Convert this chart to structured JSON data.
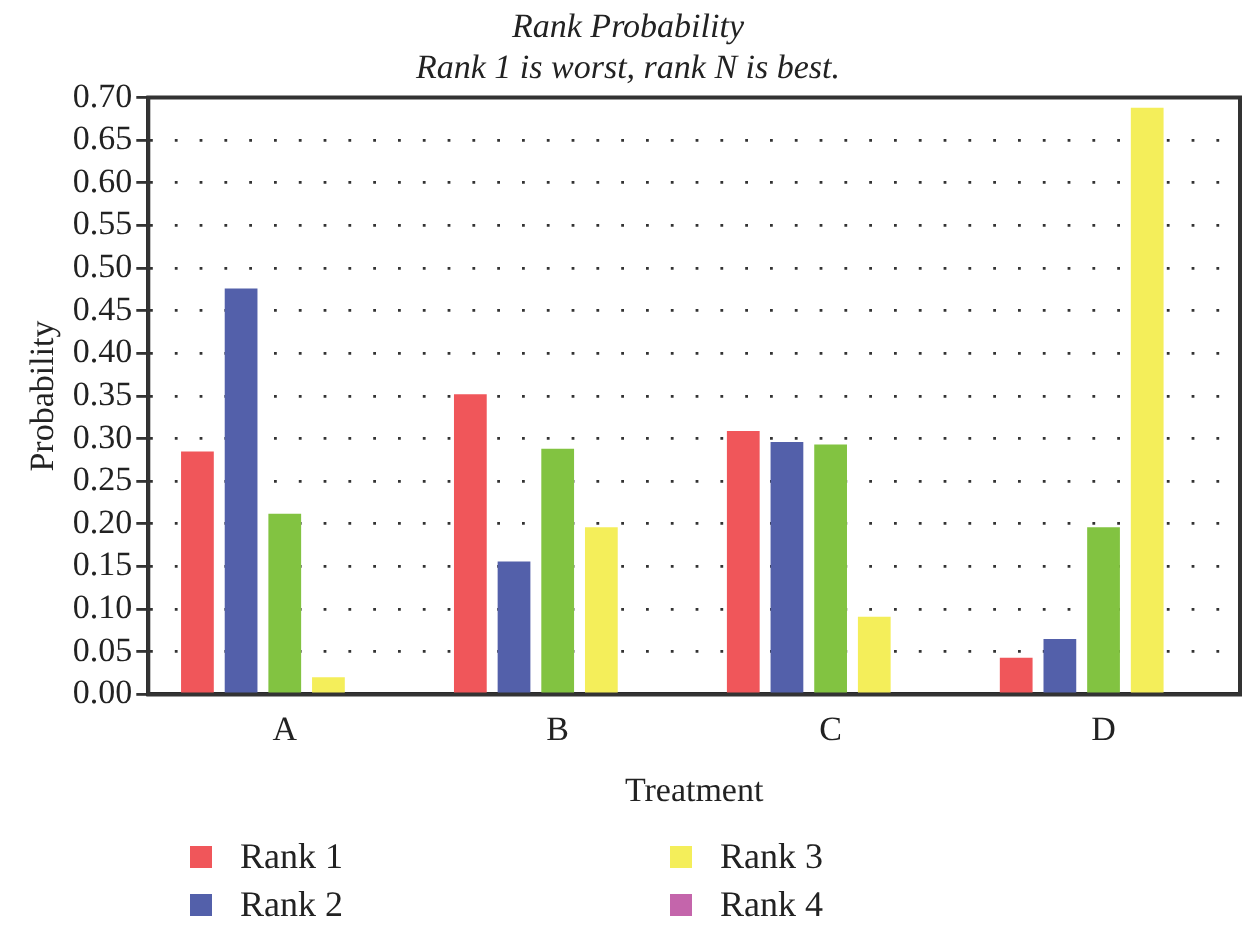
{
  "chart_data": {
    "type": "bar",
    "title": "Rank Probability",
    "subtitle": "Rank 1 is worst, rank N is best.",
    "xlabel": "Treatment",
    "ylabel": "Probability",
    "categories": [
      "A",
      "B",
      "C",
      "D"
    ],
    "series": [
      {
        "name": "Rank 1",
        "color": "#f0565a",
        "values": [
          0.285,
          0.352,
          0.309,
          0.043
        ]
      },
      {
        "name": "Rank 2",
        "color": "#5360aa",
        "values": [
          0.476,
          0.156,
          0.296,
          0.065
        ]
      },
      {
        "color": "#82c341",
        "values": [
          0.212,
          0.288,
          0.293,
          0.196
        ]
      },
      {
        "name": "Rank 3",
        "color": "#f4ee5a",
        "values": [
          0.02,
          0.196,
          0.091,
          0.688
        ]
      },
      {
        "name": "Rank 4",
        "color": "#c465ab",
        "values": [
          null,
          null,
          null,
          null
        ]
      }
    ],
    "ylim": [
      0,
      0.7
    ],
    "yticks": [
      {
        "value": 0,
        "label": "0.00"
      },
      0.05,
      {
        "value": 0.1,
        "label": "0.10"
      },
      0.15,
      {
        "value": 0.2,
        "label": "0.20"
      },
      0.25,
      {
        "value": 0.3,
        "label": "0.30"
      },
      0.35,
      {
        "value": 0.4,
        "label": "0.40"
      },
      0.45,
      {
        "value": 0.5,
        "label": "0.50"
      },
      0.55,
      {
        "value": 0.6,
        "label": "0.60"
      },
      0.65,
      {
        "value": 0.7,
        "label": "0.70"
      }
    ],
    "grid": "y",
    "legend": "bottom"
  }
}
